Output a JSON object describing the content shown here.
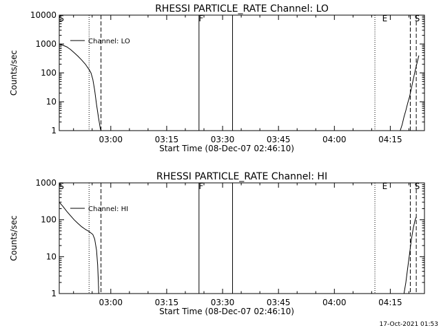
{
  "footer_timestamp": "17-Oct-2021 01:53",
  "chart_data": [
    {
      "type": "line",
      "title": "RHESSI PARTICLE_RATE Channel: LO",
      "xlabel": "Start Time (08-Dec-07 02:46:10)",
      "ylabel": "Counts/sec",
      "y_scale": "log",
      "ylim": [
        1,
        10000
      ],
      "xlim_minutes": [
        0,
        98
      ],
      "x_ticks": [
        {
          "label": "03:00",
          "minute": 13.83
        },
        {
          "label": "03:15",
          "minute": 28.83
        },
        {
          "label": "03:30",
          "minute": 43.83
        },
        {
          "label": "03:45",
          "minute": 58.83
        },
        {
          "label": "04:00",
          "minute": 73.83
        },
        {
          "label": "04:15",
          "minute": 88.83
        }
      ],
      "y_ticks": [
        {
          "label": "1",
          "value": 1
        },
        {
          "label": "10",
          "value": 10
        },
        {
          "label": "100",
          "value": 100
        },
        {
          "label": "1000",
          "value": 1000
        },
        {
          "label": "10000",
          "value": 10000
        }
      ],
      "legend": {
        "label": "Channel: LO",
        "position": "top-left"
      },
      "markers": [
        {
          "label": "S",
          "minute": 0,
          "style": "none"
        },
        {
          "label": "F",
          "minute": 37.5,
          "style": "solid"
        },
        {
          "label": "",
          "minute": 46.5,
          "style": "solid"
        },
        {
          "label": "E",
          "minute": 86.8,
          "style": "none"
        },
        {
          "label": "S",
          "minute": 95.5,
          "style": "none"
        }
      ],
      "vlines": [
        {
          "minute": 8.0,
          "style": "dotted"
        },
        {
          "minute": 11.2,
          "style": "dashed"
        },
        {
          "minute": 37.5,
          "style": "solid"
        },
        {
          "minute": 46.5,
          "style": "solid"
        },
        {
          "minute": 84.7,
          "style": "dotted"
        },
        {
          "minute": 94.2,
          "style": "dashed"
        },
        {
          "minute": 95.8,
          "style": "dashed"
        }
      ],
      "series": [
        {
          "name": "Channel: LO",
          "segments": [
            [
              [
                0,
                1000
              ],
              [
                1,
                900
              ],
              [
                2,
                800
              ],
              [
                3,
                650
              ],
              [
                4,
                500
              ],
              [
                5,
                380
              ],
              [
                6,
                280
              ],
              [
                7,
                200
              ],
              [
                8,
                130
              ],
              [
                8.5,
                100
              ],
              [
                9,
                60
              ],
              [
                9.5,
                25
              ],
              [
                10,
                8
              ],
              [
                10.5,
                3
              ],
              [
                11,
                1.2
              ],
              [
                11.2,
                1
              ]
            ],
            [
              [
                91.5,
                1
              ],
              [
                92,
                1.6
              ],
              [
                92.5,
                3
              ],
              [
                93,
                5
              ],
              [
                93.5,
                9
              ],
              [
                94,
                15
              ],
              [
                94.5,
                30
              ],
              [
                95,
                60
              ],
              [
                95.5,
                120
              ],
              [
                96,
                220
              ],
              [
                96.5,
                400
              ]
            ]
          ]
        }
      ]
    },
    {
      "type": "line",
      "title": "RHESSI PARTICLE_RATE Channel: HI",
      "xlabel": "Start Time (08-Dec-07 02:46:10)",
      "ylabel": "Counts/sec",
      "y_scale": "log",
      "ylim": [
        1,
        1000
      ],
      "xlim_minutes": [
        0,
        98
      ],
      "x_ticks": [
        {
          "label": "03:00",
          "minute": 13.83
        },
        {
          "label": "03:15",
          "minute": 28.83
        },
        {
          "label": "03:30",
          "minute": 43.83
        },
        {
          "label": "03:45",
          "minute": 58.83
        },
        {
          "label": "04:00",
          "minute": 73.83
        },
        {
          "label": "04:15",
          "minute": 88.83
        }
      ],
      "y_ticks": [
        {
          "label": "1",
          "value": 1
        },
        {
          "label": "10",
          "value": 10
        },
        {
          "label": "100",
          "value": 100
        },
        {
          "label": "1000",
          "value": 1000
        }
      ],
      "legend": {
        "label": "Channel: HI",
        "position": "top-left"
      },
      "markers": [
        {
          "label": "S",
          "minute": 0,
          "style": "none"
        },
        {
          "label": "F",
          "minute": 37.5,
          "style": "solid"
        },
        {
          "label": "",
          "minute": 46.5,
          "style": "solid"
        },
        {
          "label": "E",
          "minute": 86.8,
          "style": "none"
        },
        {
          "label": "S",
          "minute": 95.5,
          "style": "none"
        }
      ],
      "vlines": [
        {
          "minute": 8.0,
          "style": "dotted"
        },
        {
          "minute": 11.2,
          "style": "dashed"
        },
        {
          "minute": 37.5,
          "style": "solid"
        },
        {
          "minute": 46.5,
          "style": "solid"
        },
        {
          "minute": 84.7,
          "style": "dotted"
        },
        {
          "minute": 94.2,
          "style": "dashed"
        },
        {
          "minute": 95.8,
          "style": "dashed"
        }
      ],
      "series": [
        {
          "name": "Channel: HI",
          "segments": [
            [
              [
                0,
                300
              ],
              [
                1,
                230
              ],
              [
                2,
                170
              ],
              [
                3,
                130
              ],
              [
                4,
                100
              ],
              [
                5,
                80
              ],
              [
                6,
                65
              ],
              [
                7,
                55
              ],
              [
                8,
                48
              ],
              [
                9,
                40
              ],
              [
                9.5,
                30
              ],
              [
                10,
                15
              ],
              [
                10.3,
                6
              ],
              [
                10.5,
                2
              ],
              [
                10.6,
                1
              ]
            ],
            [
              [
                92.5,
                1
              ],
              [
                93,
                2
              ],
              [
                93.5,
                5
              ],
              [
                94,
                12
              ],
              [
                94.5,
                30
              ],
              [
                95,
                60
              ],
              [
                95.5,
                100
              ],
              [
                95.8,
                120
              ]
            ]
          ]
        }
      ]
    }
  ]
}
